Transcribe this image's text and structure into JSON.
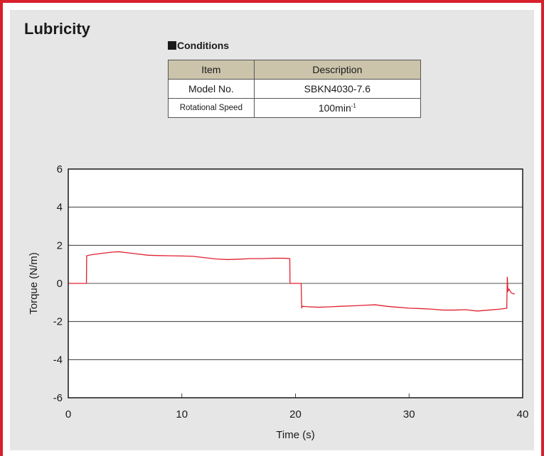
{
  "page": {
    "title": "Lubricity",
    "accent_color": "#d7202c",
    "panel_color": "#e6e6e6"
  },
  "conditions": {
    "title": "Conditions",
    "headers": [
      "Item",
      "Description"
    ],
    "rows": [
      {
        "item": "Model No.",
        "description": "SBKN4030-7.6"
      },
      {
        "item": "Rotational Speed",
        "description_base": "100min",
        "description_sup": "-1"
      }
    ],
    "header_color": "#cbc4ab"
  },
  "chart_data": {
    "type": "line",
    "title": "",
    "xlabel": "Time (s)",
    "ylabel": "Torque (N/m)",
    "xlim": [
      0,
      40
    ],
    "ylim": [
      -6,
      6
    ],
    "xticks": [
      0,
      10,
      20,
      30,
      40
    ],
    "yticks": [
      -6,
      -4,
      -2,
      0,
      2,
      4,
      6
    ],
    "grid": "horizontal",
    "series": [
      {
        "color": "#e0202e",
        "x": [
          0,
          1.6,
          1.62,
          2,
          3,
          4,
          4.5,
          5,
          6,
          7,
          8,
          9,
          10,
          11,
          12,
          13,
          14,
          15,
          16,
          17,
          18,
          19,
          19.5,
          19.52,
          20.5,
          20.55,
          20.6,
          21,
          22,
          23,
          24,
          25,
          26,
          27,
          28,
          29,
          30,
          31,
          32,
          33,
          34,
          35,
          36,
          37,
          38,
          38.6,
          38.65,
          38.7,
          38.8,
          39,
          39.2,
          39.3
        ],
        "y": [
          0,
          0,
          1.45,
          1.5,
          1.58,
          1.65,
          1.66,
          1.62,
          1.55,
          1.48,
          1.46,
          1.45,
          1.44,
          1.42,
          1.35,
          1.28,
          1.25,
          1.27,
          1.3,
          1.3,
          1.32,
          1.32,
          1.3,
          0,
          0,
          -1.3,
          -1.2,
          -1.22,
          -1.25,
          -1.23,
          -1.2,
          -1.18,
          -1.15,
          -1.12,
          -1.2,
          -1.25,
          -1.3,
          -1.32,
          -1.35,
          -1.4,
          -1.4,
          -1.38,
          -1.45,
          -1.4,
          -1.35,
          -1.3,
          0.35,
          -0.4,
          -0.3,
          -0.5,
          -0.55,
          -0.55
        ]
      }
    ]
  }
}
